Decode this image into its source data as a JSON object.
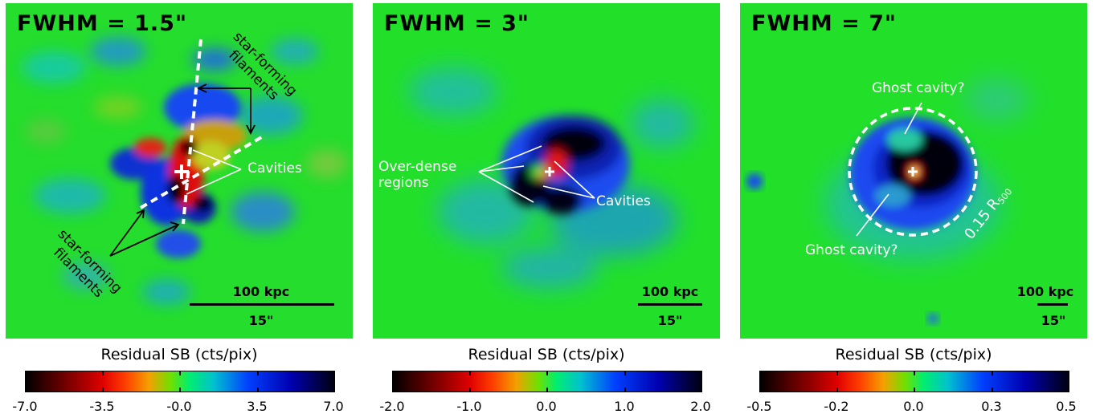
{
  "panels": [
    {
      "title": "FWHM = 1.5\"",
      "annotations": {
        "filaments_top": "star-forming\nfilaments",
        "filaments_bottom": "star-forming\nfilaments",
        "cavities": "Cavities"
      },
      "scale": {
        "top": "100 kpc",
        "bottom": "15\""
      },
      "colorbar": {
        "label": "Residual SB (cts/pix)",
        "ticks": [
          "-7.0",
          "-3.5",
          "-0.0",
          "3.5",
          "7.0"
        ]
      }
    },
    {
      "title": "FWHM = 3\"",
      "annotations": {
        "overdense": "Over-dense\nregions",
        "cavities": "Cavities"
      },
      "scale": {
        "top": "100 kpc",
        "bottom": "15\""
      },
      "colorbar": {
        "label": "Residual SB (cts/pix)",
        "ticks": [
          "-2.0",
          "-1.0",
          "0.0",
          "1.0",
          "2.0"
        ]
      }
    },
    {
      "title": "FWHM = 7\"",
      "annotations": {
        "ghost_top": "Ghost cavity?",
        "ghost_bottom": "Ghost cavity?",
        "radius_prefix": "0.15 R",
        "radius_sub": "500"
      },
      "scale": {
        "top": "100 kpc",
        "bottom": "15\""
      },
      "colorbar": {
        "label": "Residual SB (cts/pix)",
        "ticks": [
          "-0.5",
          "-0.2",
          "0.0",
          "0.3",
          "0.5"
        ]
      }
    }
  ],
  "colors": {
    "background_green": "#22e02a",
    "deficit_blue": "#1040f0",
    "core_black": "#000000",
    "excess_red": "#e81010"
  }
}
